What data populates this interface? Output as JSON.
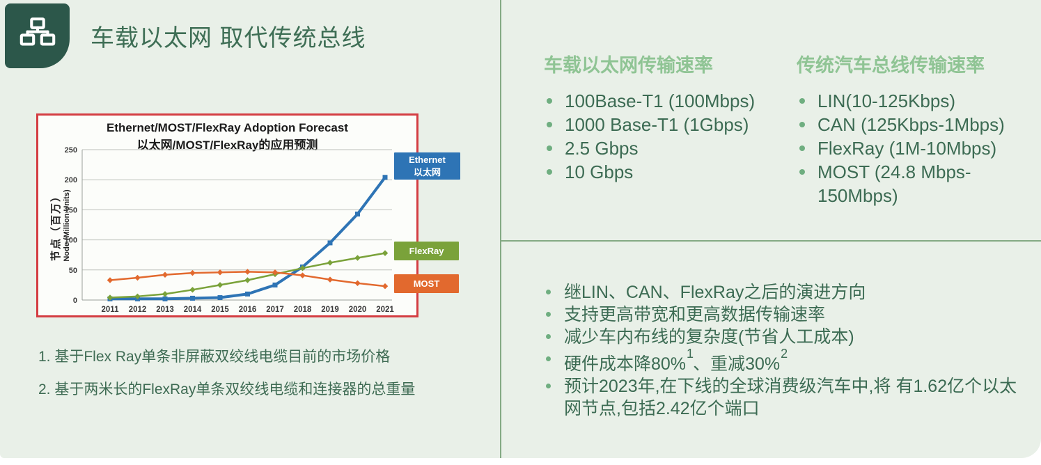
{
  "page": {
    "title": "车载以太网 取代传统总线"
  },
  "colors": {
    "panel_bg": "#e9f0e8",
    "tile_green": "#2c574a",
    "title_green": "#3e6e55",
    "heading_light_green": "#8fc494",
    "body_text_green": "#3c6b53",
    "divider_green": "#84aa84",
    "chart_border_red": "#d43d42",
    "ethernet_blue": "#2e74b5",
    "flexray_green": "#7aa23a",
    "most_orange": "#e2692e"
  },
  "chart_data": {
    "type": "line",
    "title": "Ethernet/MOST/FlexRay Adoption Forecast",
    "subtitle": "以太网/MOST/FlexRay的应用预测",
    "ylabel_cn": "节点（百万）",
    "ylabel_en": "Node (Million Units)",
    "xlabel": "",
    "x": [
      "2011",
      "2012",
      "2013",
      "2014",
      "2015",
      "2016",
      "2017",
      "2018",
      "2019",
      "2020",
      "2021"
    ],
    "ylim": [
      0,
      250
    ],
    "yticks": [
      0,
      50,
      100,
      150,
      200,
      250
    ],
    "grid": true,
    "legend_position": "right",
    "series": [
      {
        "name": "Ethernet",
        "name_cn": "以太网",
        "color": "#2e74b5",
        "marker": "square",
        "values": [
          2,
          2,
          2,
          3,
          4,
          10,
          25,
          55,
          95,
          143,
          204
        ]
      },
      {
        "name": "FlexRay",
        "color": "#7aa23a",
        "marker": "diamond",
        "values": [
          4,
          6,
          10,
          17,
          25,
          33,
          43,
          53,
          62,
          70,
          78
        ]
      },
      {
        "name": "MOST",
        "color": "#e2692e",
        "marker": "diamond",
        "values": [
          33,
          37,
          42,
          45,
          46,
          47,
          46,
          41,
          34,
          28,
          23
        ]
      }
    ]
  },
  "footnotes": [
    "1. 基于Flex Ray单条非屏蔽双绞线电缆目前的市场价格",
    "2. 基于两米长的FlexRay单条双绞线电缆和连接器的总重量"
  ],
  "speed_sections": [
    {
      "heading": "车载以太网传输速率",
      "items": [
        "100Base-T1 (100Mbps)",
        "1000 Base-T1 (1Gbps)",
        "2.5 Gbps",
        "10 Gbps"
      ]
    },
    {
      "heading": "传统汽车总线传输速率",
      "items": [
        "LIN(10-125Kbps)",
        "CAN (125Kbps-1Mbps)",
        "FlexRay (1M-10Mbps)",
        "MOST (24.8 Mbps-150Mbps)"
      ]
    }
  ],
  "evolution_points": [
    [
      {
        "t": "继LIN、CAN、FlexRay之后的演进方向"
      }
    ],
    [
      {
        "t": "支持更高带宽和更高数据传输速率"
      }
    ],
    [
      {
        "t": "减少车内布线的复杂度(节省人工成本)"
      }
    ],
    [
      {
        "t": "硬件成本降80%"
      },
      {
        "sup": "1"
      },
      {
        "t": "、重减30%"
      },
      {
        "sup": "2"
      }
    ],
    [
      {
        "t": "预计2023年,在下线的全球消费级汽车中,将 有1.62亿个以太网节点,包括2.42亿个端口"
      }
    ]
  ]
}
